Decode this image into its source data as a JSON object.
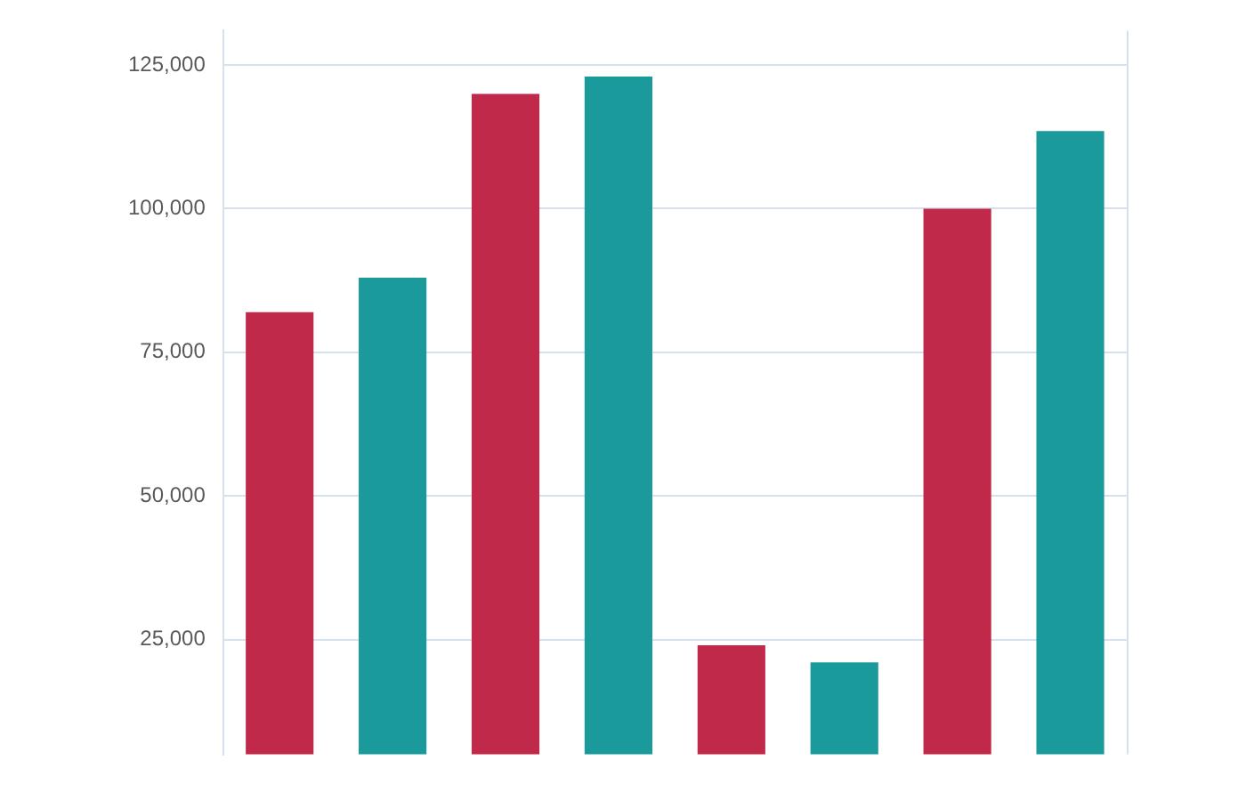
{
  "chart_data": {
    "type": "bar",
    "categories": [
      null,
      null,
      null,
      null
    ],
    "series": [
      {
        "color": "#c0294a",
        "values": [
          82000,
          120000,
          24000,
          100000
        ]
      },
      {
        "color": "#1a9a9a",
        "values": [
          88000,
          123000,
          21000,
          113500
        ]
      }
    ],
    "ylim": [
      5000,
      131000
    ],
    "yticks": [
      {
        "value": 25000,
        "label": "25,000"
      },
      {
        "value": 50000,
        "label": "50,000"
      },
      {
        "value": 75000,
        "label": "75,000"
      },
      {
        "value": 100000,
        "label": "100,000"
      },
      {
        "value": 125000,
        "label": "125,000"
      }
    ],
    "grid": "y",
    "legend": false
  }
}
